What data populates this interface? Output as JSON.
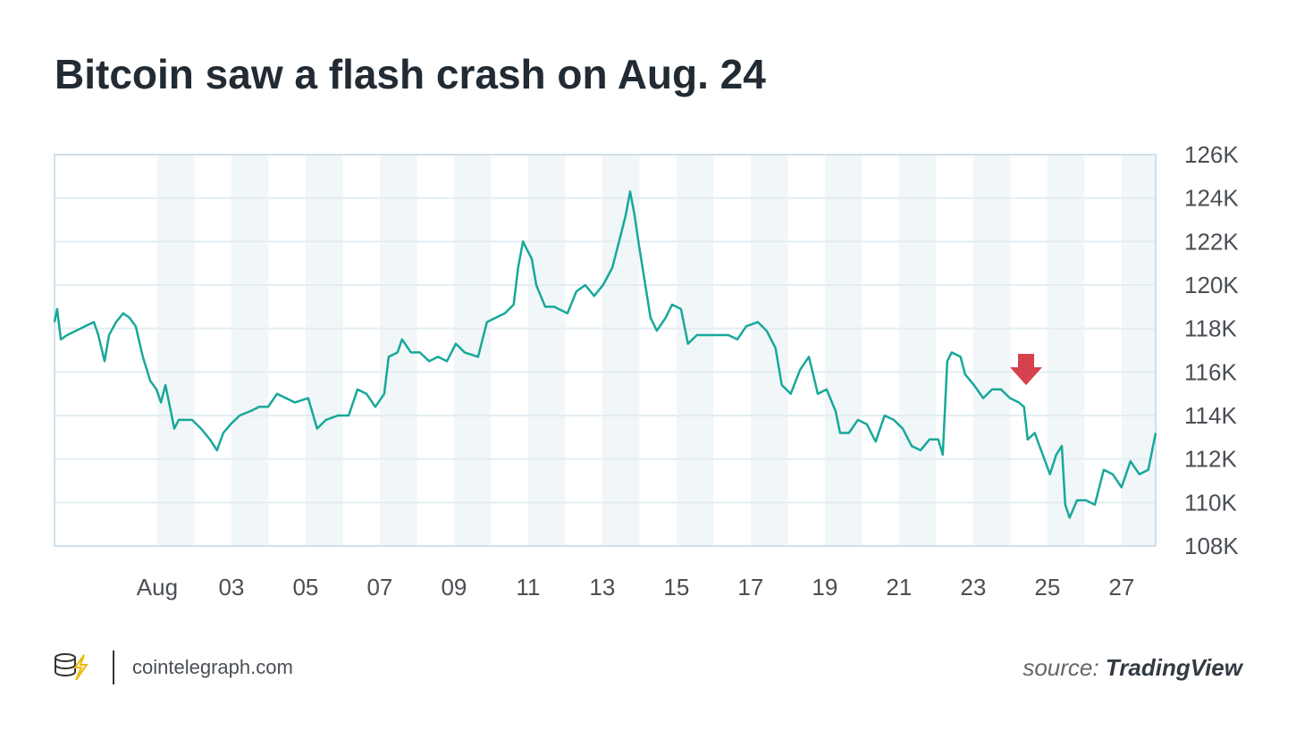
{
  "chart_data": {
    "type": "line",
    "title": "Bitcoin saw a flash crash on Aug. 24",
    "color": "#17a89a",
    "grid": true,
    "shade_alternate_days": true,
    "xlim": [
      -1.77,
      27.92
    ],
    "xticks": [
      {
        "value": 1,
        "label": "Aug"
      },
      {
        "value": 3,
        "label": "03"
      },
      {
        "value": 5,
        "label": "05"
      },
      {
        "value": 7,
        "label": "07"
      },
      {
        "value": 9,
        "label": "09"
      },
      {
        "value": 11,
        "label": "11"
      },
      {
        "value": 13,
        "label": "13"
      },
      {
        "value": 15,
        "label": "15"
      },
      {
        "value": 17,
        "label": "17"
      },
      {
        "value": 19,
        "label": "19"
      },
      {
        "value": 21,
        "label": "21"
      },
      {
        "value": 23,
        "label": "23"
      },
      {
        "value": 25,
        "label": "25"
      },
      {
        "value": 27,
        "label": "27"
      }
    ],
    "ylim": [
      108000,
      126000
    ],
    "yticks": [
      {
        "value": 108000,
        "label": "108K"
      },
      {
        "value": 110000,
        "label": "110K"
      },
      {
        "value": 112000,
        "label": "112K"
      },
      {
        "value": 114000,
        "label": "114K"
      },
      {
        "value": 116000,
        "label": "116K"
      },
      {
        "value": 118000,
        "label": "118K"
      },
      {
        "value": 120000,
        "label": "120K"
      },
      {
        "value": 122000,
        "label": "122K"
      },
      {
        "value": 124000,
        "label": "124K"
      },
      {
        "value": 126000,
        "label": "126K"
      }
    ],
    "x": [
      -1.77,
      -1.7,
      -1.6,
      -1.43,
      -1.19,
      -0.95,
      -0.71,
      -0.59,
      -0.42,
      -0.3,
      -0.11,
      0.08,
      0.25,
      0.42,
      0.61,
      0.81,
      0.98,
      1.1,
      1.22,
      1.34,
      1.46,
      1.58,
      1.7,
      1.94,
      2.18,
      2.42,
      2.61,
      2.78,
      2.98,
      3.22,
      3.51,
      3.75,
      3.99,
      4.23,
      4.47,
      4.71,
      5.07,
      5.31,
      5.55,
      5.87,
      6.16,
      6.4,
      6.64,
      6.88,
      7.12,
      7.24,
      7.48,
      7.6,
      7.84,
      8.08,
      8.33,
      8.57,
      8.81,
      9.05,
      9.29,
      9.65,
      9.89,
      10.13,
      10.37,
      10.61,
      10.73,
      10.86,
      11.1,
      11.22,
      11.46,
      11.7,
      12.06,
      12.3,
      12.54,
      12.78,
      13.02,
      13.27,
      13.51,
      13.63,
      13.75,
      13.87,
      13.99,
      14.16,
      14.3,
      14.47,
      14.71,
      14.88,
      15.12,
      15.31,
      15.55,
      15.8,
      16.04,
      16.4,
      16.64,
      16.88,
      17.19,
      17.43,
      17.67,
      17.84,
      18.08,
      18.33,
      18.57,
      18.81,
      19.05,
      19.29,
      19.41,
      19.65,
      19.89,
      20.13,
      20.37,
      20.61,
      20.86,
      21.1,
      21.34,
      21.58,
      21.82,
      22.06,
      22.18,
      22.3,
      22.42,
      22.66,
      22.78,
      23.02,
      23.27,
      23.51,
      23.75,
      23.99,
      24.23,
      24.37,
      24.47,
      24.66,
      24.83,
      25.07,
      25.24,
      25.39,
      25.48,
      25.6,
      25.8,
      26.04,
      26.28,
      26.52,
      26.76,
      27.0,
      27.24,
      27.48,
      27.72,
      27.92
    ],
    "values": [
      118300,
      118900,
      117500,
      117700,
      117900,
      118100,
      118300,
      117700,
      116500,
      117700,
      118300,
      118700,
      118500,
      118100,
      116700,
      115600,
      115200,
      114600,
      115400,
      114400,
      113400,
      113800,
      113800,
      113800,
      113400,
      112900,
      112400,
      113200,
      113600,
      114000,
      114200,
      114400,
      114400,
      115000,
      114800,
      114600,
      114800,
      113400,
      113800,
      114000,
      114000,
      115200,
      115000,
      114400,
      115000,
      116700,
      116900,
      117500,
      116900,
      116900,
      116500,
      116700,
      116500,
      117300,
      116900,
      116700,
      118300,
      118500,
      118700,
      119100,
      120800,
      122000,
      121200,
      120000,
      119000,
      119000,
      118700,
      119700,
      120000,
      119500,
      120000,
      120800,
      122400,
      123200,
      124300,
      123200,
      121800,
      120000,
      118500,
      117900,
      118500,
      119100,
      118900,
      117300,
      117700,
      117700,
      117700,
      117700,
      117500,
      118100,
      118300,
      117900,
      117100,
      115400,
      115000,
      116100,
      116700,
      115000,
      115200,
      114200,
      113200,
      113200,
      113800,
      113600,
      112800,
      114000,
      113800,
      113400,
      112600,
      112400,
      112900,
      112900,
      112200,
      116500,
      116900,
      116700,
      115900,
      115400,
      114800,
      115200,
      115200,
      114800,
      114600,
      114400,
      112900,
      113200,
      112400,
      111300,
      112200,
      112600,
      109900,
      109300,
      110100,
      110100,
      109900,
      111500,
      111300,
      110700,
      111900,
      111300,
      111500,
      113200
    ]
  },
  "footer": {
    "site": "cointelegraph.com",
    "source_label": "source:",
    "source_name": "TradingView"
  }
}
